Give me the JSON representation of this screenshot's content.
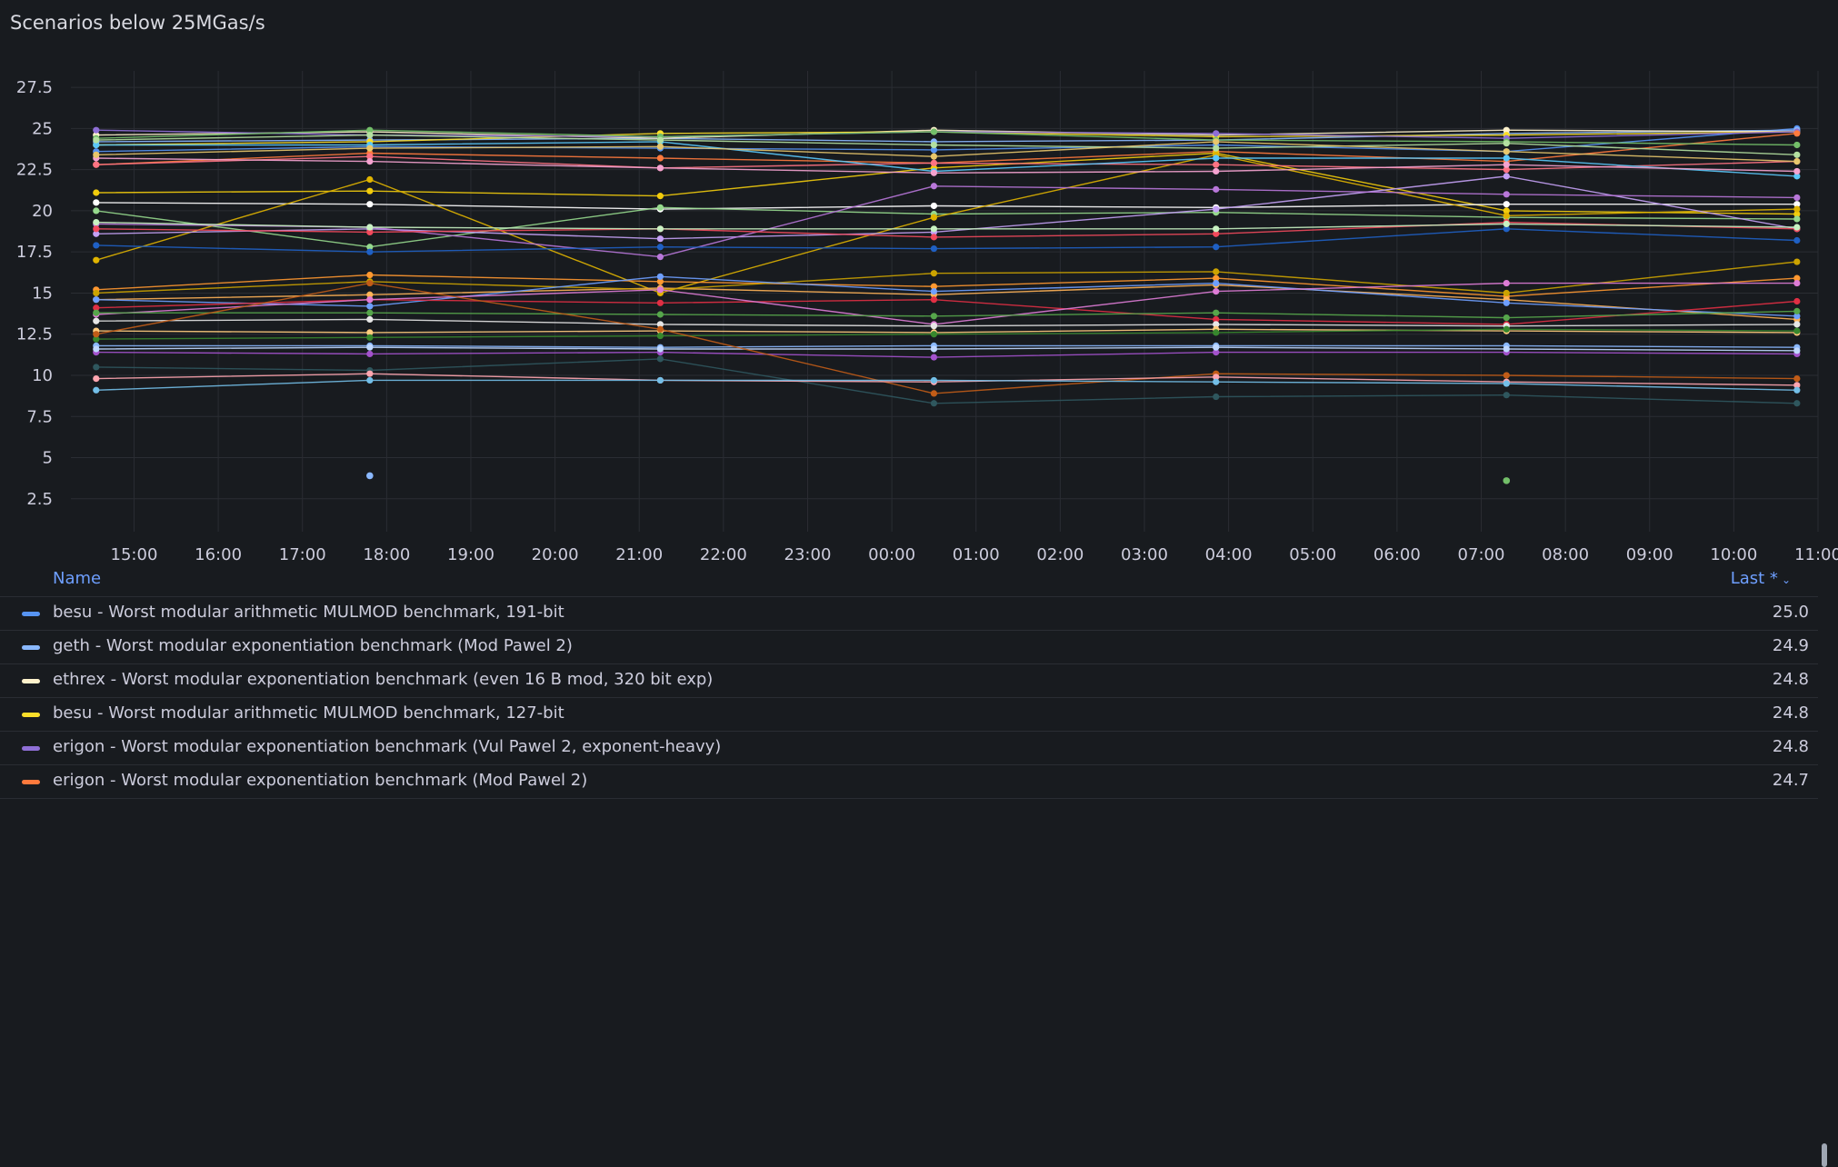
{
  "panel": {
    "title": "Scenarios below 25MGas/s"
  },
  "legend": {
    "name_header": "Name",
    "last_header": "Last *",
    "rows": [
      {
        "name": "besu - Worst modular arithmetic MULMOD benchmark, 191-bit",
        "last": "25.0",
        "color": "#5794f2"
      },
      {
        "name": "geth - Worst modular exponentiation benchmark (Mod Pawel 2)",
        "last": "24.9",
        "color": "#8ab8ff"
      },
      {
        "name": "ethrex - Worst modular exponentiation benchmark (even 16 B mod, 320 bit exp)",
        "last": "24.8",
        "color": "#fff2cc"
      },
      {
        "name": "besu - Worst modular arithmetic MULMOD benchmark, 127-bit",
        "last": "24.8",
        "color": "#fade2a"
      },
      {
        "name": "erigon - Worst modular exponentiation benchmark (Vul Pawel 2, exponent-heavy)",
        "last": "24.8",
        "color": "#8f6fd6"
      },
      {
        "name": "erigon - Worst modular exponentiation benchmark (Mod Pawel 2)",
        "last": "24.7",
        "color": "#ff7a3d"
      }
    ]
  },
  "chart_data": {
    "type": "line",
    "title": "Scenarios below 25MGas/s",
    "xlabel": "",
    "ylabel": "",
    "ylim": [
      0.5,
      28.5
    ],
    "y_ticks": [
      "27.5",
      "25",
      "22.5",
      "20",
      "17.5",
      "15",
      "12.5",
      "10",
      "7.5",
      "5",
      "2.5"
    ],
    "x_ticks": [
      "15:00",
      "16:00",
      "17:00",
      "18:00",
      "19:00",
      "20:00",
      "21:00",
      "22:00",
      "23:00",
      "00:00",
      "01:00",
      "02:00",
      "03:00",
      "04:00",
      "05:00",
      "06:00",
      "07:00",
      "08:00",
      "09:00",
      "10:00",
      "11:00"
    ],
    "x": [
      -0.45,
      2.8,
      6.25,
      9.5,
      12.85,
      16.3,
      19.75
    ],
    "series": [
      {
        "name": "besu - Worst modular arithmetic MULMOD benchmark, 191-bit",
        "color": "#5794f2",
        "values": [
          23.6,
          23.9,
          23.8,
          23.7,
          24.0,
          23.6,
          25.0
        ]
      },
      {
        "name": "geth - Worst modular exponentiation benchmark (Mod Pawel 2)",
        "color": "#8ab8ff",
        "values": [
          24.2,
          24.3,
          24.4,
          24.2,
          24.3,
          24.7,
          24.9
        ]
      },
      {
        "name": "ethrex - Worst modular exponentiation benchmark (even 16 B mod, 320 bit exp)",
        "color": "#fff2cc",
        "values": [
          24.6,
          24.8,
          24.4,
          24.9,
          24.6,
          24.9,
          24.8
        ]
      },
      {
        "name": "besu - Worst modular arithmetic MULMOD benchmark, 127-bit",
        "color": "#fade2a",
        "values": [
          24.0,
          24.2,
          24.7,
          24.8,
          24.5,
          24.6,
          24.8
        ]
      },
      {
        "name": "erigon - Worst modular exponentiation benchmark (Vul Pawel 2, exponent-heavy)",
        "color": "#8f6fd6",
        "values": [
          24.9,
          24.6,
          24.5,
          24.8,
          24.7,
          24.4,
          24.8
        ]
      },
      {
        "name": "erigon - Worst modular exponentiation benchmark (Mod Pawel 2)",
        "color": "#ff7a3d",
        "values": [
          22.8,
          23.5,
          23.2,
          22.9,
          23.6,
          23.0,
          24.7
        ]
      },
      {
        "name": "",
        "color": "#73bf69",
        "values": [
          24.4,
          24.9,
          24.5,
          24.8,
          24.3,
          24.2,
          24.0
        ]
      },
      {
        "name": "",
        "color": "#f2cc0c",
        "values": [
          21.1,
          21.2,
          20.9,
          22.6,
          23.5,
          20.0,
          19.8
        ]
      },
      {
        "name": "",
        "color": "#ffffff",
        "values": [
          20.5,
          20.4,
          20.1,
          20.3,
          20.2,
          20.4,
          20.4
        ]
      },
      {
        "name": "",
        "color": "#96d98d",
        "values": [
          20.0,
          17.8,
          20.2,
          19.8,
          19.9,
          19.6,
          19.5
        ]
      },
      {
        "name": "",
        "color": "#e0b400",
        "values": [
          17.0,
          21.9,
          15.0,
          19.6,
          23.4,
          19.7,
          20.1
        ]
      },
      {
        "name": "",
        "color": "#c4a1f5",
        "values": [
          18.6,
          18.9,
          18.3,
          18.7,
          20.1,
          22.1,
          18.9
        ]
      },
      {
        "name": "",
        "color": "#b877d9",
        "values": [
          19.2,
          19.0,
          17.2,
          21.5,
          21.3,
          21.0,
          20.8
        ]
      },
      {
        "name": "",
        "color": "#f2495c",
        "values": [
          18.9,
          18.7,
          18.9,
          18.4,
          18.6,
          19.3,
          18.9
        ]
      },
      {
        "name": "",
        "color": "#1f60c4",
        "values": [
          17.9,
          17.5,
          17.8,
          17.7,
          17.8,
          18.9,
          18.2
        ]
      },
      {
        "name": "",
        "color": "#c8f2c2",
        "values": [
          19.3,
          19.0,
          18.9,
          18.9,
          18.9,
          19.2,
          19.0
        ]
      },
      {
        "name": "",
        "color": "#ff9830",
        "values": [
          15.2,
          16.1,
          15.7,
          15.4,
          15.9,
          14.8,
          15.9
        ]
      },
      {
        "name": "",
        "color": "#ffb357",
        "values": [
          14.6,
          14.9,
          15.3,
          14.9,
          15.5,
          14.6,
          13.4
        ]
      },
      {
        "name": "",
        "color": "#cca300",
        "values": [
          15.0,
          15.7,
          15.2,
          16.2,
          16.3,
          15.0,
          16.9
        ]
      },
      {
        "name": "",
        "color": "#6e9fff",
        "values": [
          14.6,
          14.2,
          16.0,
          15.1,
          15.6,
          14.4,
          13.6
        ]
      },
      {
        "name": "",
        "color": "#e02f44",
        "values": [
          14.1,
          14.6,
          14.4,
          14.6,
          13.4,
          13.1,
          14.5
        ]
      },
      {
        "name": "",
        "color": "#de7cd6",
        "values": [
          13.7,
          14.6,
          15.2,
          13.1,
          15.1,
          15.6,
          15.6
        ]
      },
      {
        "name": "",
        "color": "#56a64b",
        "values": [
          13.8,
          13.8,
          13.7,
          13.6,
          13.8,
          13.5,
          13.9
        ]
      },
      {
        "name": "",
        "color": "#e6e6e6",
        "values": [
          13.3,
          13.4,
          13.1,
          13.0,
          13.1,
          13.0,
          13.1
        ]
      },
      {
        "name": "",
        "color": "#ffcb7d",
        "values": [
          12.7,
          12.6,
          12.7,
          12.6,
          12.8,
          12.7,
          12.6
        ]
      },
      {
        "name": "",
        "color": "#8ab8ff",
        "values": [
          11.8,
          11.8,
          11.7,
          11.8,
          11.8,
          11.8,
          11.7
        ]
      },
      {
        "name": "",
        "color": "#a352cc",
        "values": [
          11.4,
          11.3,
          11.4,
          11.1,
          11.4,
          11.4,
          11.3
        ]
      },
      {
        "name": "",
        "color": "#c0d8ff",
        "values": [
          11.6,
          11.7,
          11.6,
          11.6,
          11.7,
          11.6,
          11.5
        ]
      },
      {
        "name": "",
        "color": "#37872d",
        "values": [
          12.2,
          12.3,
          12.4,
          12.5,
          12.6,
          12.8,
          12.7
        ]
      },
      {
        "name": "",
        "color": "#c15c17",
        "values": [
          12.5,
          15.6,
          12.8,
          8.9,
          10.1,
          10.0,
          9.8
        ]
      },
      {
        "name": "",
        "color": "#2f575e",
        "values": [
          10.5,
          10.3,
          11.0,
          8.3,
          8.7,
          8.8,
          8.3
        ]
      },
      {
        "name": "",
        "color": "#ffa6b0",
        "values": [
          9.8,
          10.1,
          9.7,
          9.6,
          9.9,
          9.6,
          9.4
        ]
      },
      {
        "name": "",
        "color": "#73bfe8",
        "values": [
          9.1,
          9.7,
          9.7,
          9.7,
          9.6,
          9.5,
          9.1
        ]
      },
      {
        "name": "",
        "color": "#ff7383",
        "values": [
          22.8,
          23.3,
          22.6,
          22.9,
          22.8,
          22.5,
          23.0
        ]
      },
      {
        "name": "",
        "color": "#5ac8fa",
        "values": [
          24.0,
          24.0,
          24.2,
          22.4,
          23.2,
          23.2,
          22.1
        ]
      },
      {
        "name": "",
        "color": "#f5a3d0",
        "values": [
          23.2,
          23.0,
          22.6,
          22.3,
          22.4,
          22.8,
          22.4
        ]
      },
      {
        "name": "",
        "color": "#b4e0a0",
        "values": [
          24.3,
          24.6,
          24.3,
          24.0,
          23.8,
          24.1,
          23.4
        ]
      },
      {
        "name": "",
        "color": "#e8c76b",
        "values": [
          23.4,
          23.8,
          23.9,
          23.3,
          24.2,
          23.6,
          23.0
        ]
      }
    ],
    "isolated_points": [
      {
        "x": 2.8,
        "y": 3.9,
        "color": "#8ab8ff"
      },
      {
        "x": 16.3,
        "y": 3.6,
        "color": "#73bf69"
      }
    ]
  }
}
